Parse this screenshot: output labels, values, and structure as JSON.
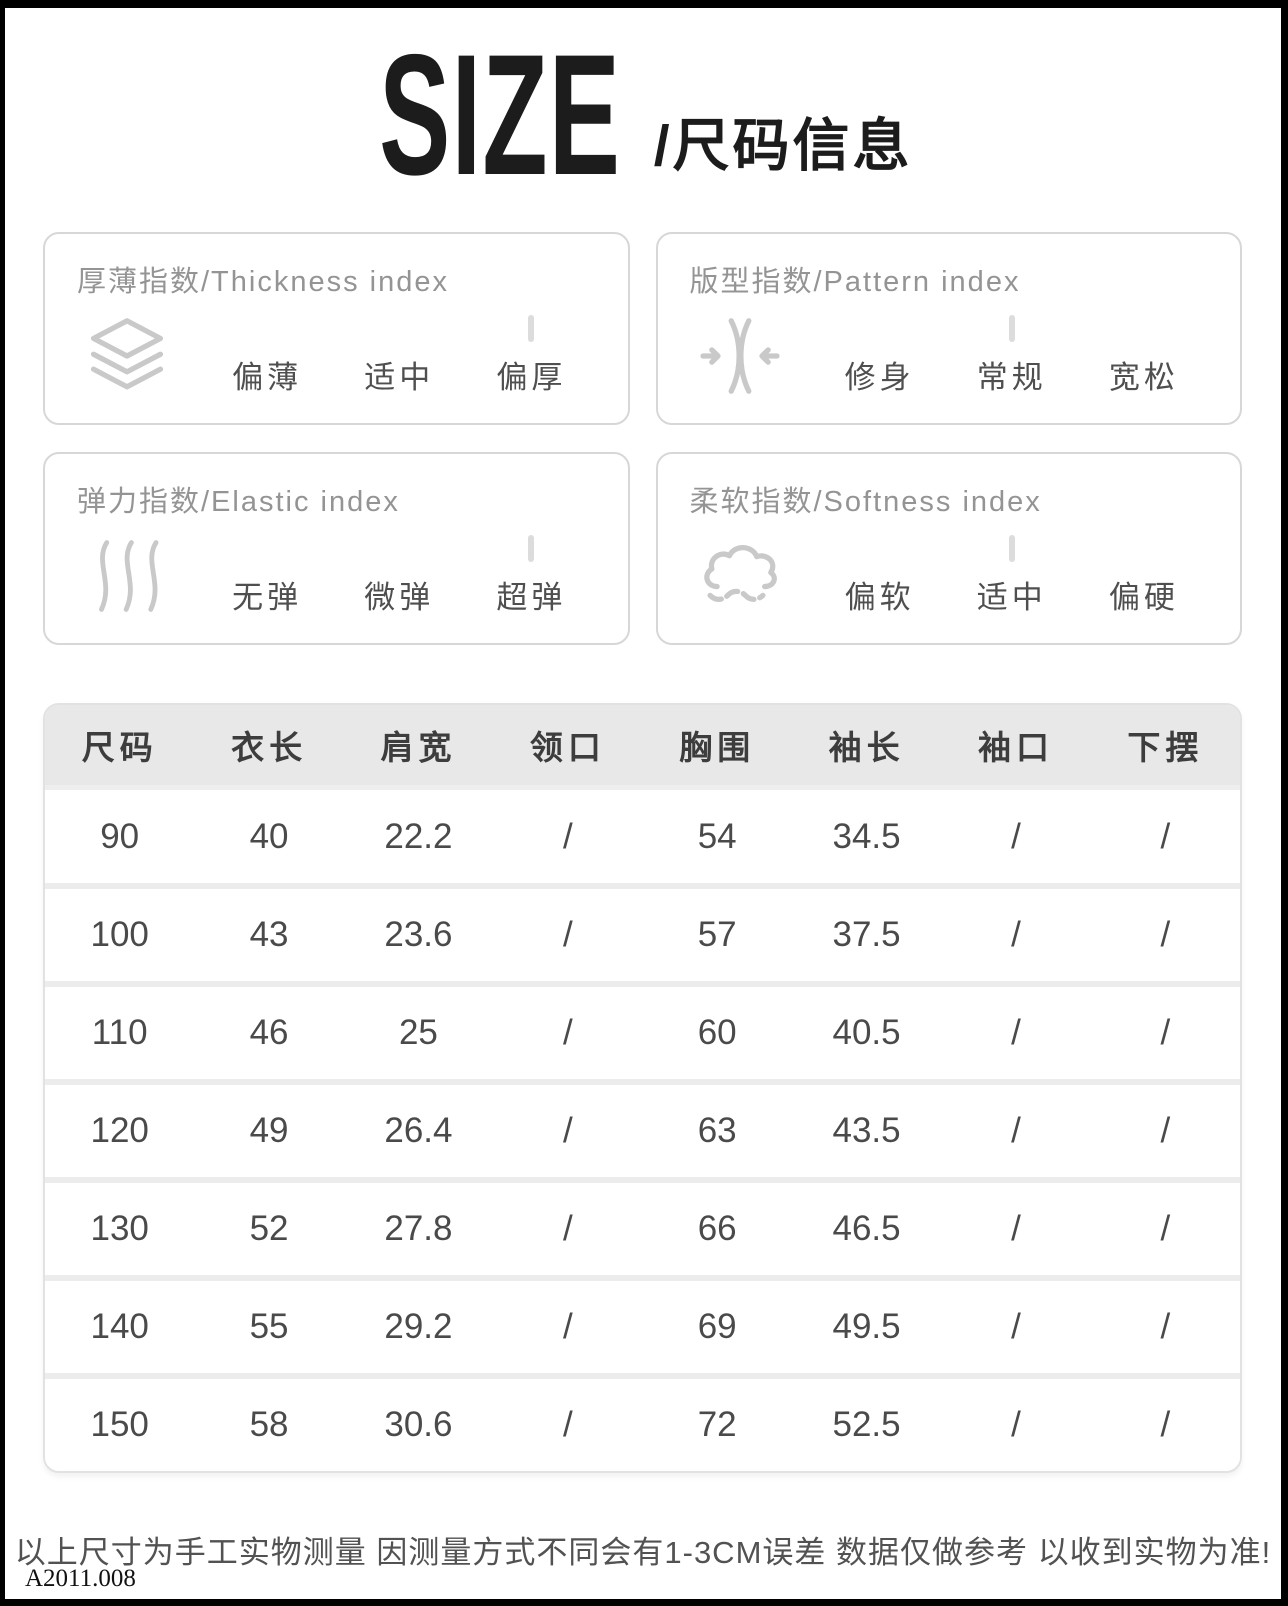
{
  "title": {
    "main": "SIZE",
    "sub": "/尺码信息"
  },
  "index_boxes": [
    {
      "title": "厚薄指数/Thickness index",
      "icon": "layers-icon",
      "options": [
        "偏薄",
        "适中",
        "偏厚"
      ],
      "selected": 2
    },
    {
      "title": "版型指数/Pattern index",
      "icon": "compress-icon",
      "options": [
        "修身",
        "常规",
        "宽松"
      ],
      "selected": 1
    },
    {
      "title": "弹力指数/Elastic index",
      "icon": "waves-icon",
      "options": [
        "无弹",
        "微弹",
        "超弹"
      ],
      "selected": 2
    },
    {
      "title": "柔软指数/Softness index",
      "icon": "cloud-icon",
      "options": [
        "偏软",
        "适中",
        "偏硬"
      ],
      "selected": 1
    }
  ],
  "size_table": {
    "headers": [
      "尺码",
      "衣长",
      "肩宽",
      "领口",
      "胸围",
      "袖长",
      "袖口",
      "下摆"
    ],
    "rows": [
      [
        "90",
        "40",
        "22.2",
        "/",
        "54",
        "34.5",
        "/",
        "/"
      ],
      [
        "100",
        "43",
        "23.6",
        "/",
        "57",
        "37.5",
        "/",
        "/"
      ],
      [
        "110",
        "46",
        "25",
        "/",
        "60",
        "40.5",
        "/",
        "/"
      ],
      [
        "120",
        "49",
        "26.4",
        "/",
        "63",
        "43.5",
        "/",
        "/"
      ],
      [
        "130",
        "52",
        "27.8",
        "/",
        "66",
        "46.5",
        "/",
        "/"
      ],
      [
        "140",
        "55",
        "29.2",
        "/",
        "69",
        "49.5",
        "/",
        "/"
      ],
      [
        "150",
        "58",
        "30.6",
        "/",
        "72",
        "52.5",
        "/",
        "/"
      ]
    ]
  },
  "footer": {
    "note": "以上尺寸为手工实物测量 因测量方式不同会有1-3CM误差 数据仅做参考 以收到实物为准!",
    "code": "A2011.008"
  },
  "colors": {
    "frame": "#000000",
    "card_border": "#d7d7d7",
    "table_header_bg": "#e8e8e8",
    "icon_gray": "#c9c9c9",
    "text_dark": "#4a4a4a"
  }
}
